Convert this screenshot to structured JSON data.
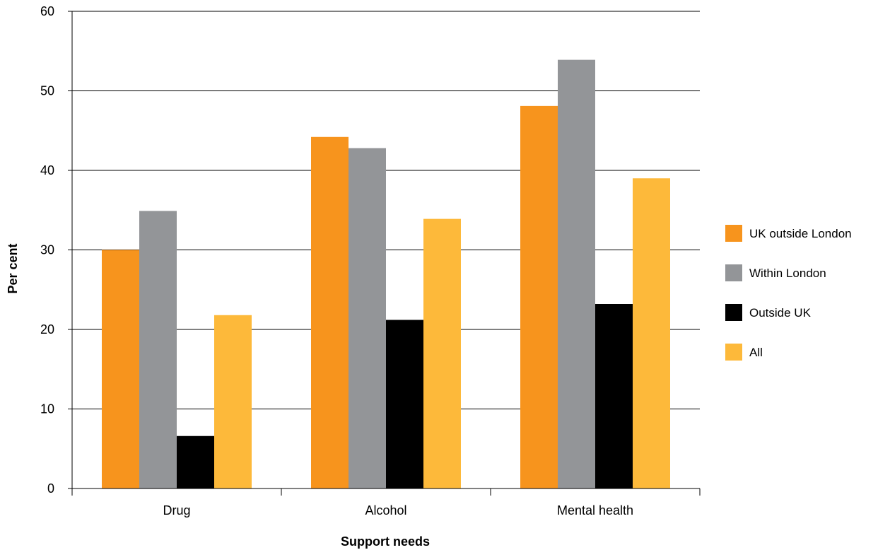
{
  "chart_data": {
    "type": "bar",
    "title": "",
    "xlabel": "Support needs",
    "ylabel": "Per cent",
    "ylim": [
      0,
      60
    ],
    "yticks": [
      0,
      10,
      20,
      30,
      40,
      50,
      60
    ],
    "grid": true,
    "legend_position": "right",
    "categories": [
      "Drug",
      "Alcohol",
      "Mental health"
    ],
    "series": [
      {
        "name": "UK outside London",
        "color": "#F7941D",
        "values": [
          30,
          44.2,
          48.1
        ]
      },
      {
        "name": "Within London",
        "color": "#939598",
        "values": [
          34.9,
          42.8,
          53.9
        ]
      },
      {
        "name": "Outside UK",
        "color": "#000000",
        "values": [
          6.6,
          21.2,
          23.2
        ]
      },
      {
        "name": "All",
        "color": "#FDB93A",
        "values": [
          21.8,
          33.9,
          39
        ]
      }
    ]
  }
}
